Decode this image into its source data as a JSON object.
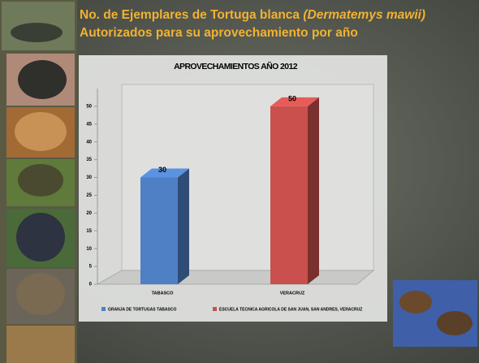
{
  "header": {
    "line1": "No. de Ejemplares de Tortuga blanca",
    "line1_italic": "(Dermatemys mawii)",
    "line2": "Autorizados para su aprovechamiento por año"
  },
  "chart_data": {
    "type": "bar3d",
    "title": "APROVECHAMIENTOS AÑO 2012",
    "categories": [
      "TABASCO",
      "VERACRUZ"
    ],
    "series": [
      {
        "name": "GRANJA DE TORTUGAS TABASCO",
        "color": "#4f7fc4",
        "values": [
          30,
          null
        ]
      },
      {
        "name": "ESCUELA TECNICA AGRICOLA DE SAN JUAN, SAN ANDRES, VERACRUZ",
        "color": "#c9504d",
        "values": [
          null,
          50
        ]
      }
    ],
    "ylim": [
      0,
      55
    ],
    "yticks": [
      0,
      5,
      10,
      15,
      20,
      25,
      30,
      35,
      40,
      45,
      50
    ],
    "grid": false,
    "legend": "bottom"
  }
}
